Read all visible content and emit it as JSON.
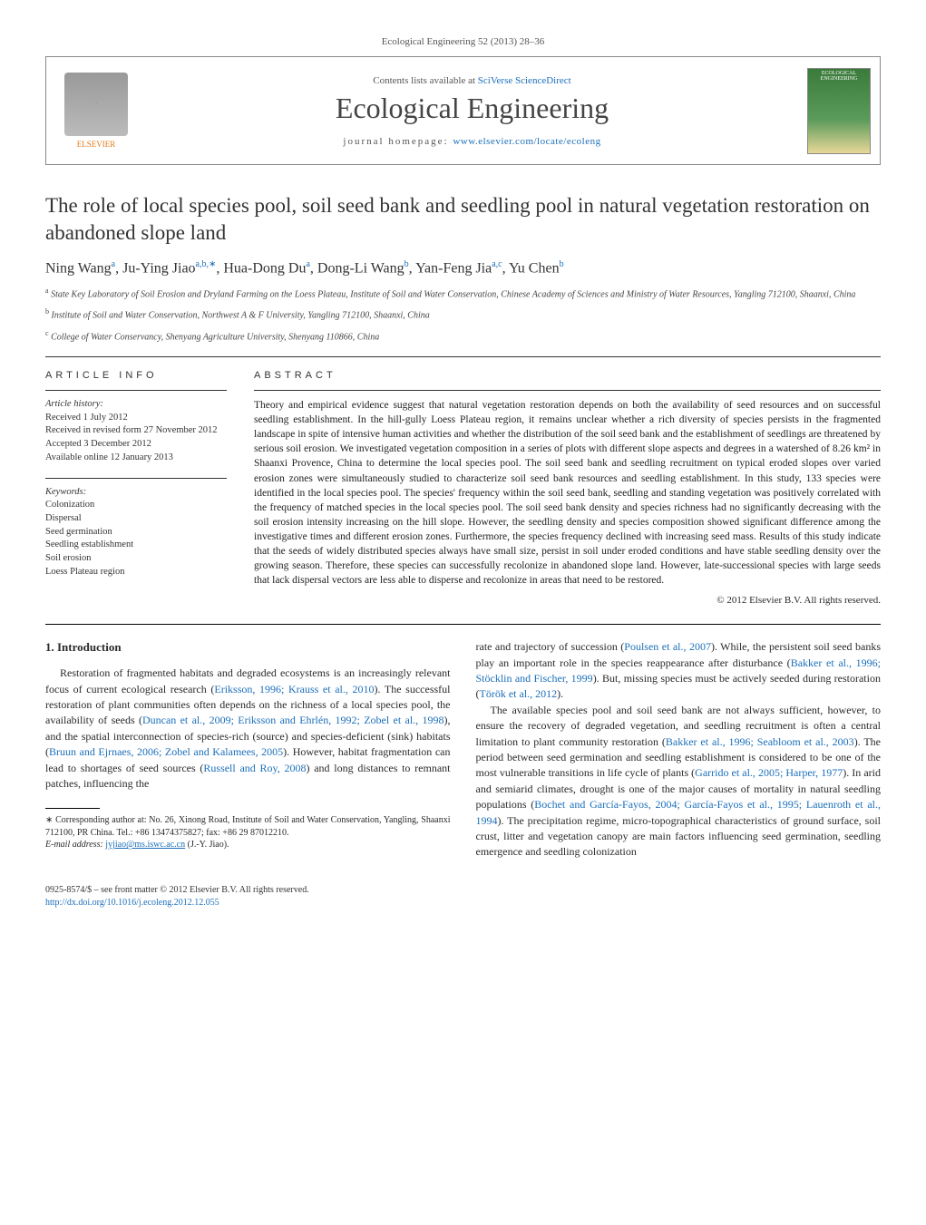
{
  "journal_header": "Ecological Engineering 52 (2013) 28–36",
  "header": {
    "publisher": "ELSEVIER",
    "contents_prefix": "Contents lists available at ",
    "contents_link": "SciVerse ScienceDirect",
    "journal_title": "Ecological Engineering",
    "homepage_prefix": "journal homepage: ",
    "homepage_link": "www.elsevier.com/locate/ecoleng",
    "cover_label": "ECOLOGICAL ENGINEERING"
  },
  "title": "The role of local species pool, soil seed bank and seedling pool in natural vegetation restoration on abandoned slope land",
  "authors_html": "Ning Wang<sup>a</sup>, Ju-Ying Jiao<sup>a,b,∗</sup>, Hua-Dong Du<sup>a</sup>, Dong-Li Wang<sup>b</sup>, Yan-Feng Jia<sup>a,c</sup>, Yu Chen<sup>b</sup>",
  "affiliations": {
    "a": "State Key Laboratory of Soil Erosion and Dryland Farming on the Loess Plateau, Institute of Soil and Water Conservation, Chinese Academy of Sciences and Ministry of Water Resources, Yangling 712100, Shaanxi, China",
    "b": "Institute of Soil and Water Conservation, Northwest A & F University, Yangling 712100, Shaanxi, China",
    "c": "College of Water Conservancy, Shenyang Agriculture University, Shenyang 110866, China"
  },
  "article_info": {
    "heading": "article info",
    "history_label": "Article history:",
    "received": "Received 1 July 2012",
    "revised": "Received in revised form 27 November 2012",
    "accepted": "Accepted 3 December 2012",
    "online": "Available online 12 January 2013",
    "keywords_label": "Keywords:",
    "keywords": [
      "Colonization",
      "Dispersal",
      "Seed germination",
      "Seedling establishment",
      "Soil erosion",
      "Loess Plateau region"
    ]
  },
  "abstract": {
    "heading": "abstract",
    "text": "Theory and empirical evidence suggest that natural vegetation restoration depends on both the availability of seed resources and on successful seedling establishment. In the hill-gully Loess Plateau region, it remains unclear whether a rich diversity of species persists in the fragmented landscape in spite of intensive human activities and whether the distribution of the soil seed bank and the establishment of seedlings are threatened by serious soil erosion. We investigated vegetation composition in a series of plots with different slope aspects and degrees in a watershed of 8.26 km² in Shaanxi Provence, China to determine the local species pool. The soil seed bank and seedling recruitment on typical eroded slopes over varied erosion zones were simultaneously studied to characterize soil seed bank resources and seedling establishment. In this study, 133 species were identified in the local species pool. The species' frequency within the soil seed bank, seedling and standing vegetation was positively correlated with the frequency of matched species in the local species pool. The soil seed bank density and species richness had no significantly decreasing with the soil erosion intensity increasing on the hill slope. However, the seedling density and species composition showed significant difference among the investigative times and different erosion zones. Furthermore, the species frequency declined with increasing seed mass. Results of this study indicate that the seeds of widely distributed species always have small size, persist in soil under eroded conditions and have stable seedling density over the growing season. Therefore, these species can successfully recolonize in abandoned slope land. However, late-successional species with large seeds that lack dispersal vectors are less able to disperse and recolonize in areas that need to be restored.",
    "copyright": "© 2012 Elsevier B.V. All rights reserved."
  },
  "body": {
    "section_heading": "1.  Introduction",
    "col1_p1_a": "Restoration of fragmented habitats and degraded ecosystems is an increasingly relevant focus of current ecological research (",
    "col1_c1": "Eriksson, 1996; Krauss et al., 2010",
    "col1_p1_b": "). The successful restoration of plant communities often depends on the richness of a local species pool, the availability of seeds (",
    "col1_c2": "Duncan et al., 2009; Eriksson and Ehrlén, 1992; Zobel et al., 1998",
    "col1_p1_c": "), and the spatial interconnection of species-rich (source) and species-deficient (sink) habitats (",
    "col1_c3": "Bruun and Ejrnaes, 2006; Zobel and Kalamees, 2005",
    "col1_p1_d": "). However, habitat fragmentation can lead to shortages of seed sources (",
    "col1_c4": "Russell and Roy, 2008",
    "col1_p1_e": ") and long distances to remnant patches, influencing the",
    "col2_p1_a": "rate and trajectory of succession (",
    "col2_c1": "Poulsen et al., 2007",
    "col2_p1_b": "). While, the persistent soil seed banks play an important role in the species reappearance after disturbance (",
    "col2_c2": "Bakker et al., 1996; Stöcklin and Fischer, 1999",
    "col2_p1_c": "). But, missing species must be actively seeded during restoration (",
    "col2_c3": "Török et al., 2012",
    "col2_p1_d": ").",
    "col2_p2_a": "The available species pool and soil seed bank are not always sufficient, however, to ensure the recovery of degraded vegetation, and seedling recruitment is often a central limitation to plant community restoration (",
    "col2_c4": "Bakker et al., 1996; Seabloom et al., 2003",
    "col2_p2_b": "). The period between seed germination and seedling establishment is considered to be one of the most vulnerable transitions in life cycle of plants (",
    "col2_c5": "Garrido et al., 2005; Harper, 1977",
    "col2_p2_c": "). In arid and semiarid climates, drought is one of the major causes of mortality in natural seedling populations (",
    "col2_c6": "Bochet and García-Fayos, 2004; García-Fayos et al., 1995; Lauenroth et al., 1994",
    "col2_p2_d": "). The precipitation regime, micro-topographical characteristics of ground surface, soil crust, litter and vegetation canopy are main factors influencing seed germination, seedling emergence and seedling colonization"
  },
  "footnotes": {
    "corr": "∗ Corresponding author at: No. 26, Xinong Road, Institute of Soil and Water Conservation, Yangling, Shaanxi 712100, PR China. Tel.: +86 13474375827; fax: +86 29 87012210.",
    "email_label": "E-mail address: ",
    "email": "jyjiao@ms.iswc.ac.cn",
    "email_suffix": " (J.-Y. Jiao)."
  },
  "footer": {
    "line1": "0925-8574/$ – see front matter © 2012 Elsevier B.V. All rights reserved.",
    "doi": "http://dx.doi.org/10.1016/j.ecoleng.2012.12.055"
  },
  "colors": {
    "link": "#1b6fba",
    "publisher": "#e67817",
    "text": "#2a2a2a"
  }
}
